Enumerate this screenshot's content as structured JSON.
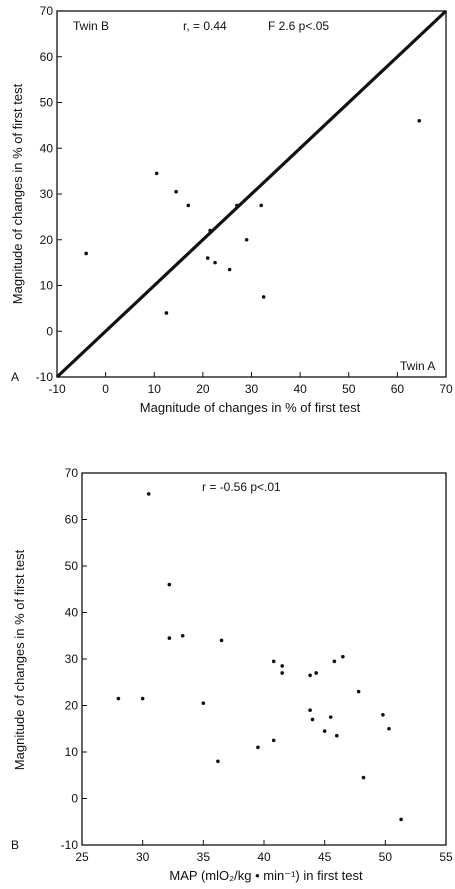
{
  "chart_data": [
    {
      "type": "scatter",
      "panel_label": "A",
      "title": "",
      "xlabel": "Magnitude of changes in % of first test",
      "ylabel": "Magnitude of changes in % of first test",
      "xlim": [
        -10,
        70
      ],
      "ylim": [
        -10,
        70
      ],
      "xticks": [
        "-10",
        "0",
        "10",
        "20",
        "30",
        "40",
        "50",
        "60",
        "70"
      ],
      "yticks": [
        "-10",
        "0",
        "10",
        "20",
        "30",
        "40",
        "50",
        "60",
        "70"
      ],
      "annotations": {
        "series_y": "Twin B",
        "series_x": "Twin A",
        "r": "r, = 0.44",
        "f": "F 2.6 p<.05"
      },
      "identity_line": [
        [
          -10,
          -10
        ],
        [
          70,
          70
        ]
      ],
      "points": [
        {
          "x": -4,
          "y": 17
        },
        {
          "x": 10.5,
          "y": 34.5
        },
        {
          "x": 14.5,
          "y": 30.5
        },
        {
          "x": 17,
          "y": 27.5
        },
        {
          "x": 12.5,
          "y": 4
        },
        {
          "x": 21,
          "y": 16
        },
        {
          "x": 21.5,
          "y": 22
        },
        {
          "x": 22.5,
          "y": 15
        },
        {
          "x": 25.5,
          "y": 13.5
        },
        {
          "x": 27,
          "y": 27.5
        },
        {
          "x": 29,
          "y": 20
        },
        {
          "x": 32,
          "y": 27.5
        },
        {
          "x": 32.5,
          "y": 7.5
        },
        {
          "x": 64.5,
          "y": 46
        }
      ]
    },
    {
      "type": "scatter",
      "panel_label": "B",
      "title": "",
      "xlabel": "MAP (mlO₂/kg • min⁻¹) in first test",
      "ylabel": "Magnitude of changes in % of first test",
      "xlim": [
        25,
        55
      ],
      "ylim": [
        -10,
        70
      ],
      "xticks": [
        "25",
        "30",
        "35",
        "40",
        "45",
        "50",
        "55"
      ],
      "yticks": [
        "-10",
        "0",
        "10",
        "20",
        "30",
        "40",
        "50",
        "60",
        "70"
      ],
      "annotations": {
        "r": "r = -0.56 p<.01"
      },
      "points": [
        {
          "x": 28,
          "y": 21.5
        },
        {
          "x": 30,
          "y": 21.5
        },
        {
          "x": 30.5,
          "y": 65.5
        },
        {
          "x": 32.2,
          "y": 46
        },
        {
          "x": 32.2,
          "y": 34.5
        },
        {
          "x": 33.3,
          "y": 35
        },
        {
          "x": 35,
          "y": 20.5
        },
        {
          "x": 36.2,
          "y": 8
        },
        {
          "x": 36.5,
          "y": 34
        },
        {
          "x": 39.5,
          "y": 11
        },
        {
          "x": 40.8,
          "y": 29.5
        },
        {
          "x": 40.8,
          "y": 12.5
        },
        {
          "x": 41.5,
          "y": 27
        },
        {
          "x": 41.5,
          "y": 28.5
        },
        {
          "x": 43.8,
          "y": 26.5
        },
        {
          "x": 43.8,
          "y": 19
        },
        {
          "x": 44,
          "y": 17
        },
        {
          "x": 44.3,
          "y": 27
        },
        {
          "x": 45,
          "y": 14.5
        },
        {
          "x": 45.5,
          "y": 17.5
        },
        {
          "x": 45.8,
          "y": 29.5
        },
        {
          "x": 46,
          "y": 13.5
        },
        {
          "x": 46.5,
          "y": 30.5
        },
        {
          "x": 47.8,
          "y": 23
        },
        {
          "x": 48.2,
          "y": 4.5
        },
        {
          "x": 49.8,
          "y": 18
        },
        {
          "x": 50.3,
          "y": 15
        },
        {
          "x": 51.3,
          "y": -4.5
        }
      ]
    }
  ]
}
